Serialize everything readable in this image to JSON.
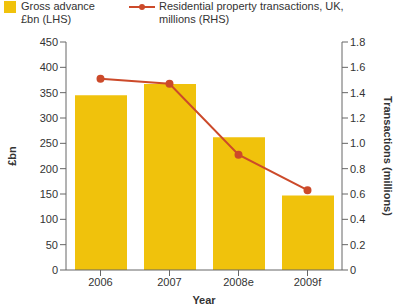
{
  "chart_data": {
    "type": "bar",
    "categories": [
      "2006",
      "2007",
      "2008e",
      "2009f"
    ],
    "x_label": "Year",
    "y_label": "£bn",
    "y2_label": "Transactions (millions)",
    "ylim": [
      0,
      450
    ],
    "yticks": [
      0,
      50,
      100,
      150,
      200,
      250,
      300,
      350,
      400,
      450
    ],
    "y2lim": [
      0,
      1.8
    ],
    "y2ticks": [
      0,
      0.2,
      0.4,
      0.6,
      0.8,
      {
        "value": 1,
        "label": "1.0"
      },
      1.2,
      1.4,
      1.6,
      1.8
    ],
    "grid": false,
    "legend": "top",
    "series": [
      {
        "name": "Gross advance £bn (LHS)",
        "type": "bar",
        "color": "#f0c20c",
        "values": [
          345,
          367,
          262,
          147
        ]
      },
      {
        "name": "Residential property transactions, UK, millions (RHS)",
        "type": "line",
        "axis": "y2",
        "color": "#cc4a2a",
        "marker": "circle",
        "values": [
          1.51,
          1.47,
          0.91,
          0.63
        ]
      }
    ]
  }
}
